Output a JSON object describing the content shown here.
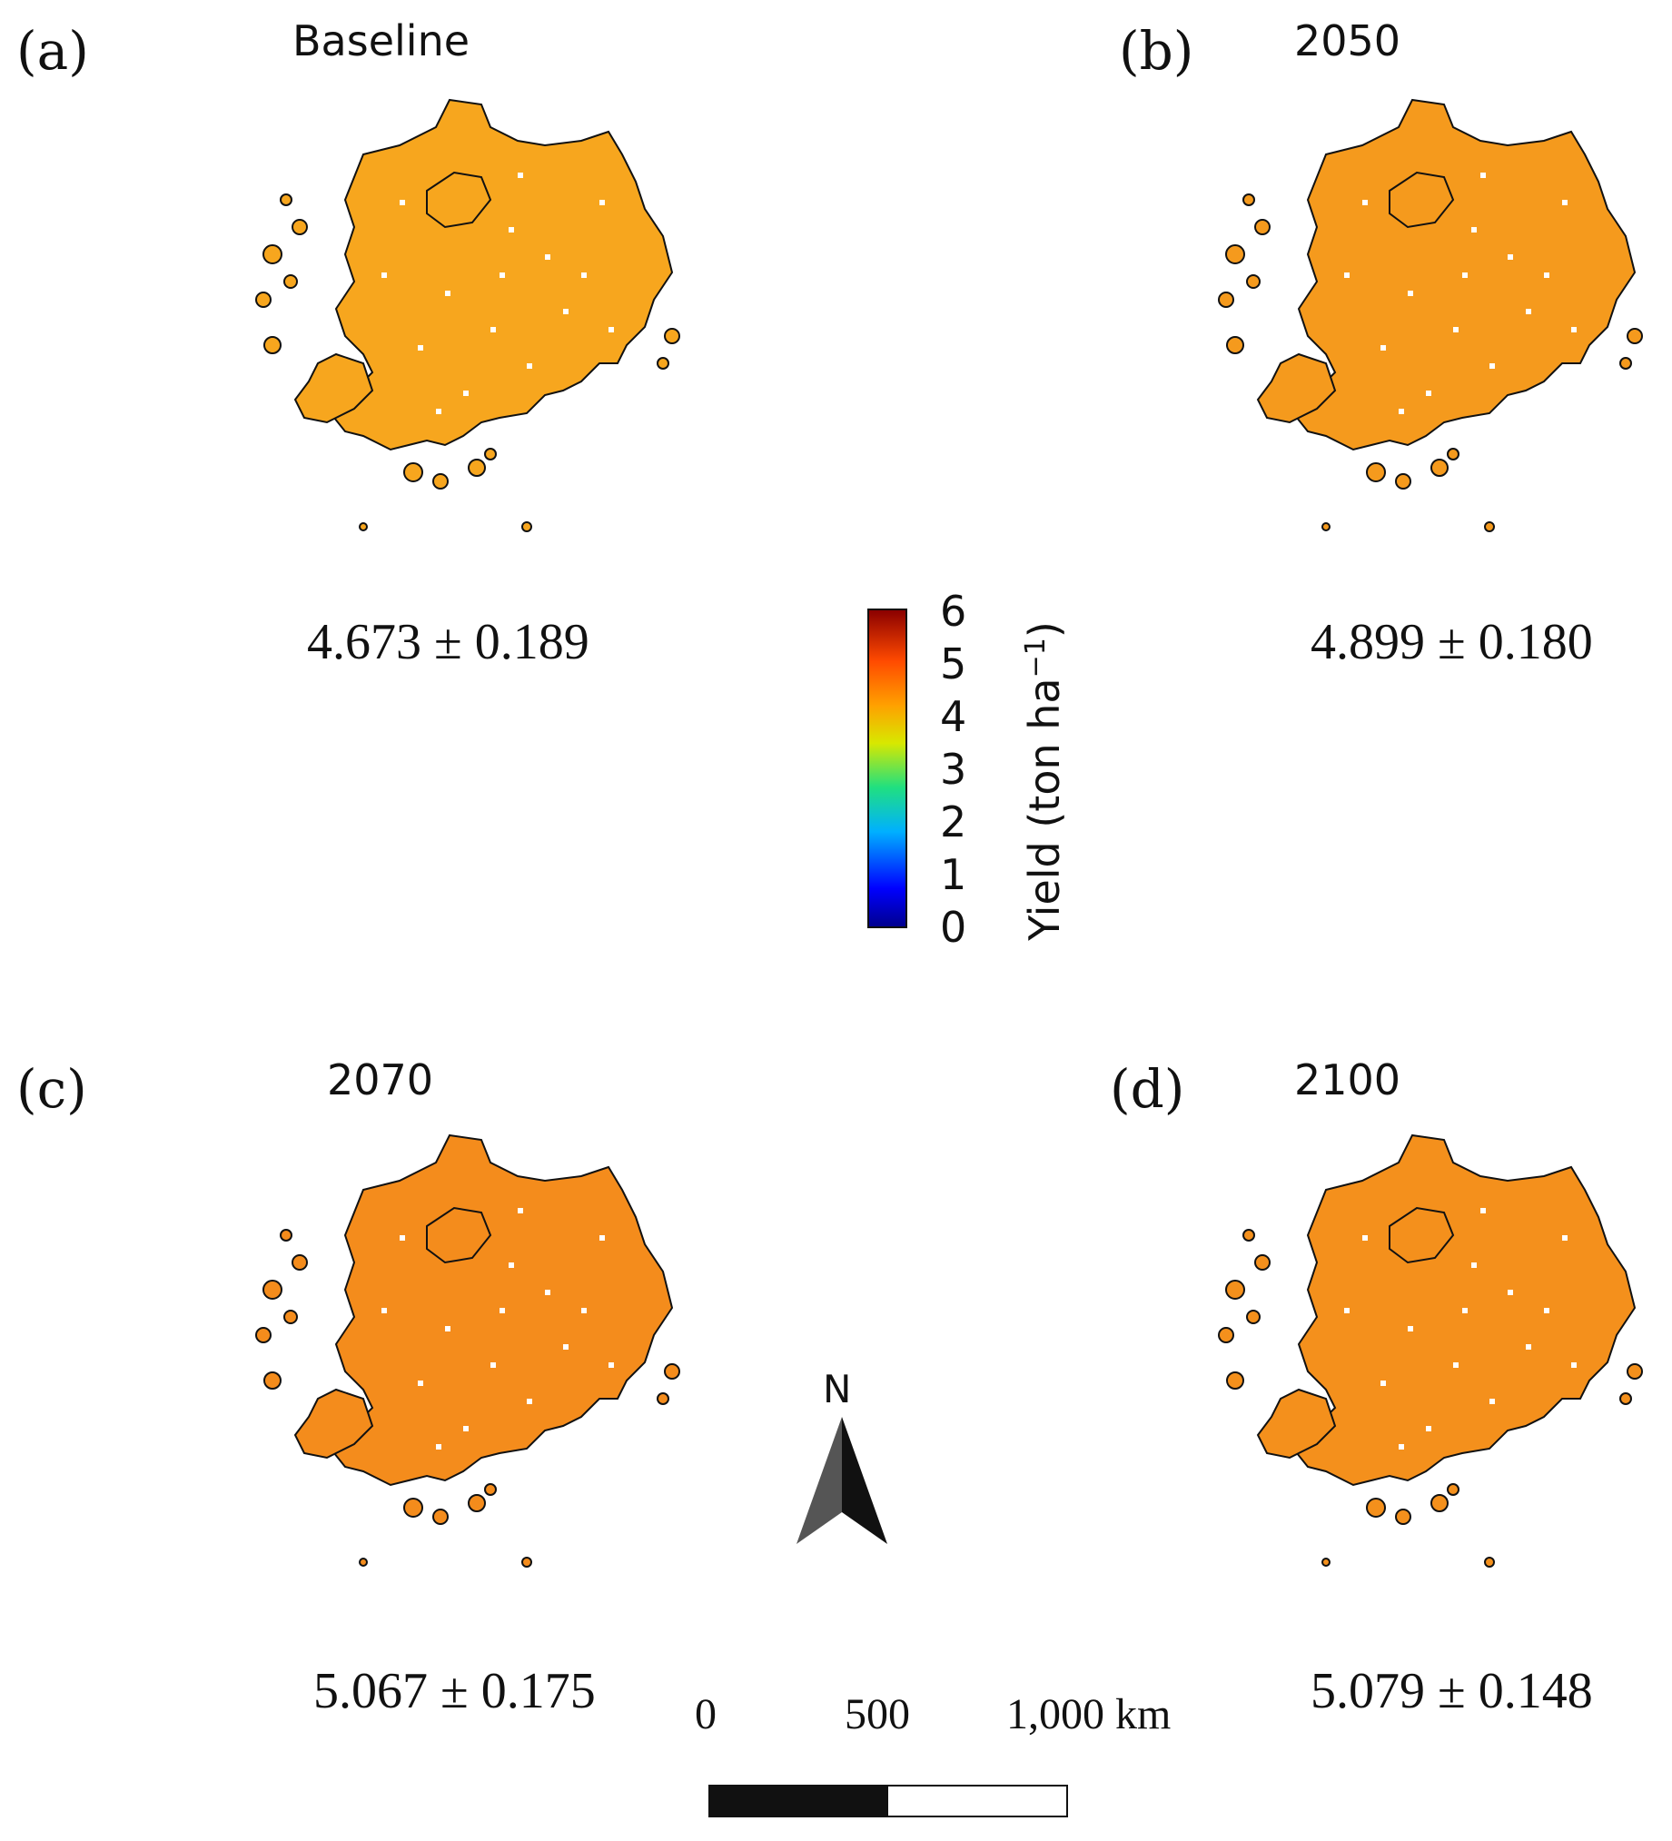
{
  "panels": [
    {
      "letter": "(a)",
      "title": "Baseline",
      "stat": "4.673 ± 0.189",
      "fill": "#f7a61e",
      "fill2": "#f28a1c"
    },
    {
      "letter": "(b)",
      "title": "2050",
      "stat": "4.899 ± 0.180",
      "fill": "#f59a1d",
      "fill2": "#f0701a"
    },
    {
      "letter": "(c)",
      "title": "2070",
      "stat": "5.067 ± 0.175",
      "fill": "#f48c1c",
      "fill2": "#ee5c1a"
    },
    {
      "letter": "(d)",
      "title": "2100",
      "stat": "5.079 ± 0.148",
      "fill": "#f4901c",
      "fill2": "#ee601a"
    }
  ],
  "colorbar": {
    "label": "Yield (ton ha",
    "label_sup": "−1",
    "label_close": ")",
    "ticks": [
      "6",
      "5",
      "4",
      "3",
      "2",
      "1",
      "0"
    ],
    "min": 0,
    "max": 6
  },
  "north_arrow": {
    "label": "N"
  },
  "scale_bar": {
    "labels": [
      "0",
      "500",
      "1,000 km"
    ]
  }
}
